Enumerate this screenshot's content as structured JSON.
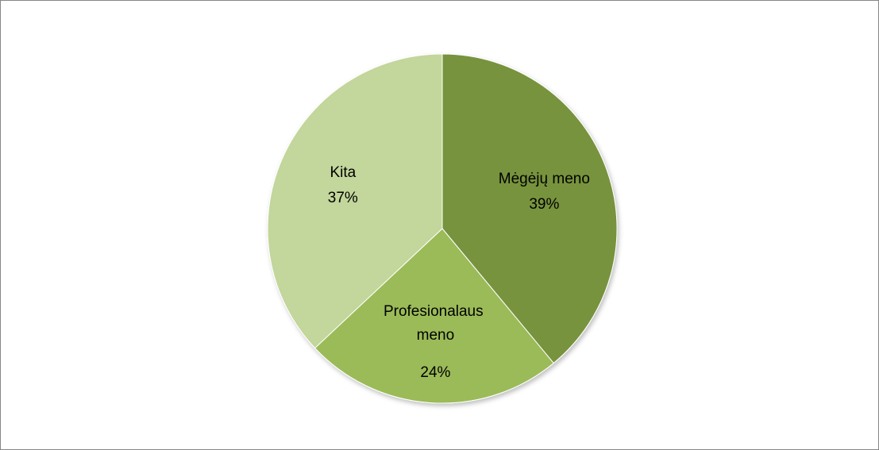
{
  "chart_data": {
    "type": "pie",
    "categories": [
      "Mėgėjų meno",
      "Profesionalaus meno",
      "Kita"
    ],
    "values": [
      39,
      24,
      37
    ],
    "value_labels": [
      "39%",
      "24%",
      "37%"
    ],
    "colors": [
      "#77933c",
      "#9bbb59",
      "#c3d69b"
    ]
  }
}
